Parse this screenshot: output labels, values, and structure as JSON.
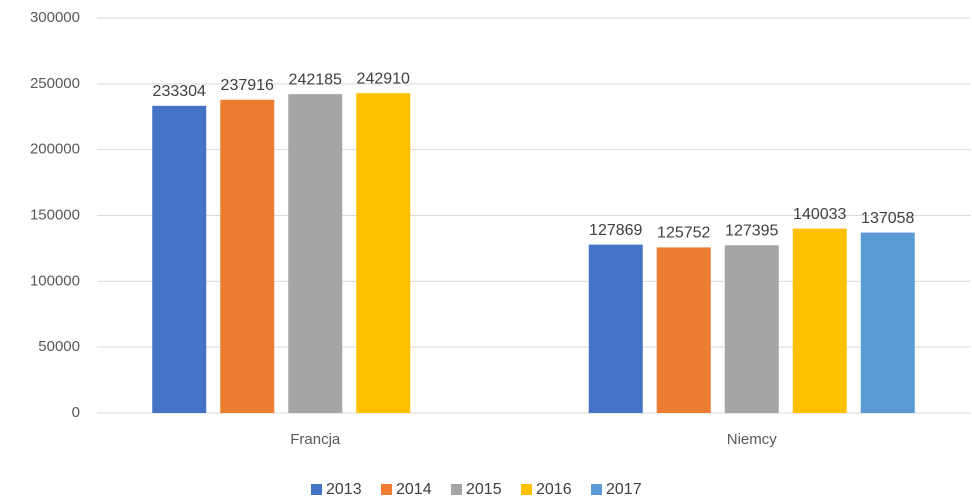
{
  "chart_data": {
    "type": "bar",
    "categories": [
      "Francja",
      "Niemcy"
    ],
    "series": [
      {
        "name": "2013",
        "color": "#4472c4",
        "values": [
          233304,
          127869
        ]
      },
      {
        "name": "2014",
        "color": "#ed7d31",
        "values": [
          237916,
          125752
        ]
      },
      {
        "name": "2015",
        "color": "#a5a5a5",
        "values": [
          242185,
          127395
        ]
      },
      {
        "name": "2016",
        "color": "#ffc000",
        "values": [
          242910,
          140033
        ]
      },
      {
        "name": "2017",
        "color": "#5b9bd5",
        "values": [
          null,
          137058
        ]
      }
    ],
    "ylim": [
      0,
      300000
    ],
    "yticks": [
      0,
      50000,
      100000,
      150000,
      200000,
      250000,
      300000
    ],
    "grid": true,
    "legend": "bottom"
  }
}
